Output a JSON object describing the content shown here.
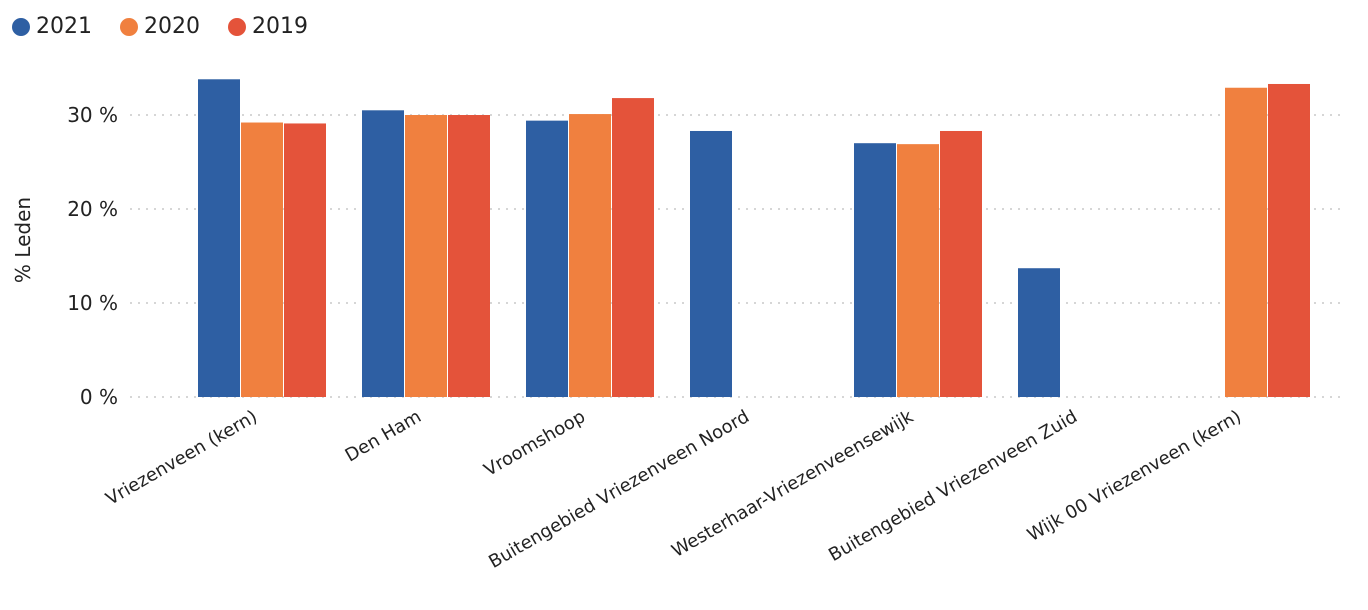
{
  "chart_data": {
    "type": "bar",
    "categories": [
      "Vriezenveen (kern)",
      "Den Ham",
      "Vroomshoop",
      "Buitengebied Vriezenveen Noord",
      "Westerhaar-Vriezenveensewijk",
      "Buitengebied Vriezenveen Zuid",
      "Wijk 00 Vriezenveen (kern)"
    ],
    "series": [
      {
        "name": "2021",
        "color": "#2e5fa3",
        "values": [
          33.8,
          30.5,
          29.4,
          28.3,
          27.0,
          13.7,
          null
        ]
      },
      {
        "name": "2020",
        "color": "#f0803f",
        "values": [
          29.2,
          30.0,
          30.1,
          null,
          26.9,
          null,
          32.9
        ]
      },
      {
        "name": "2019",
        "color": "#e4533a",
        "values": [
          29.1,
          30.0,
          31.8,
          null,
          28.3,
          null,
          33.3
        ]
      }
    ],
    "ylabel": "% Leden",
    "xlabel": "",
    "ylim": [
      0,
      35
    ],
    "yticks": [
      {
        "value": 0,
        "label": "0 %"
      },
      {
        "value": 10,
        "label": "10 %"
      },
      {
        "value": 20,
        "label": "20 %"
      },
      {
        "value": 30,
        "label": "30 %"
      }
    ],
    "grid": true,
    "legend_position": "top-left"
  }
}
